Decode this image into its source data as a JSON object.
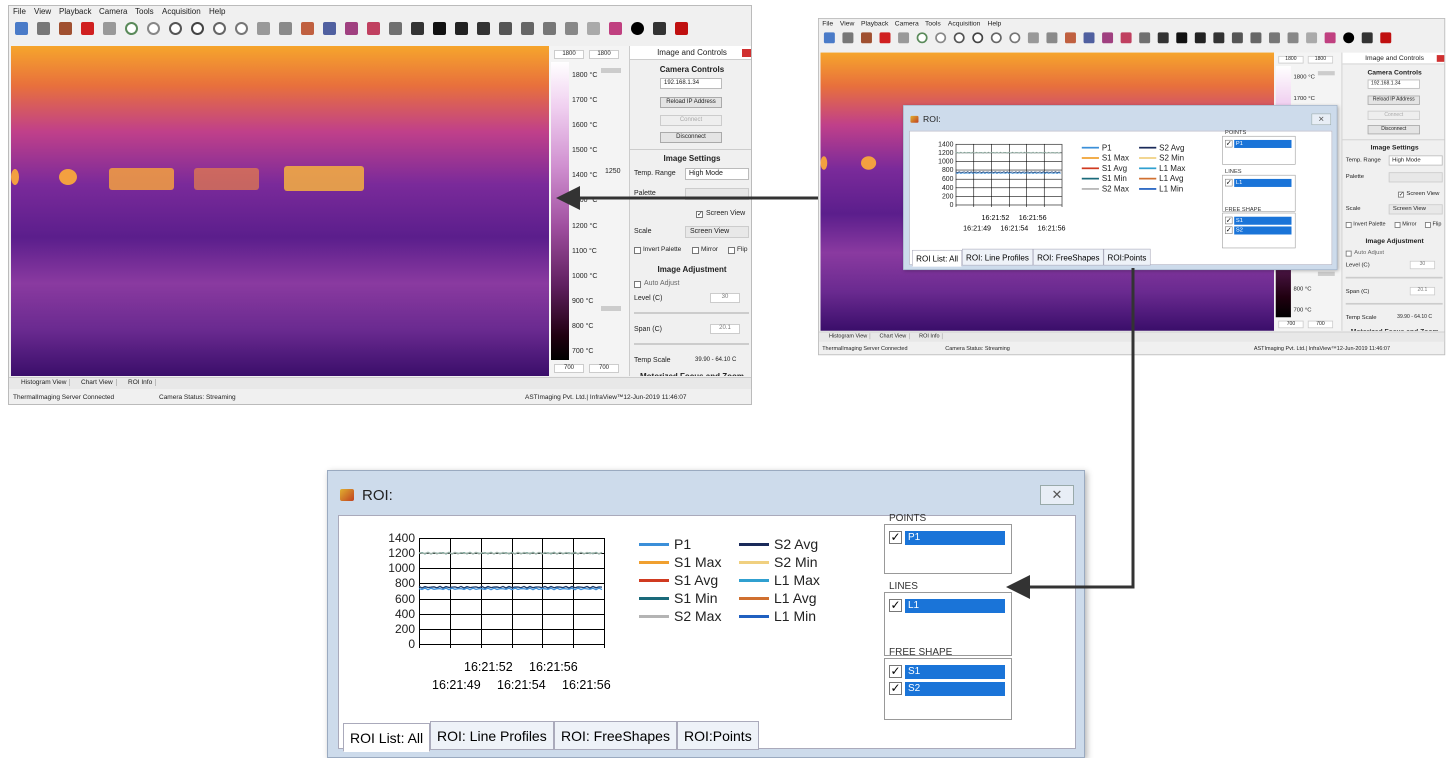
{
  "app": {
    "menu": [
      "File",
      "View",
      "Playback",
      "Camera",
      "Tools",
      "Acquisition",
      "Help"
    ],
    "scale_top": [
      "1800",
      "1800"
    ],
    "scale_labels": [
      "1800 °C",
      "1700 °C",
      "1600 °C",
      "1500 °C",
      "1400 °C",
      "1300 °C",
      "1200 °C",
      "1100 °C",
      "1000 °C",
      "900 °C",
      "800 °C",
      "700 °C"
    ],
    "scale_mid": "1250",
    "scale_bottom": [
      "700",
      "700"
    ],
    "panel": {
      "title": "Image and Controls",
      "camera_controls": "Camera Controls",
      "ip": "192.168.1.34",
      "reload": "Reload IP Address",
      "connect": "Connect",
      "disconnect": "Disconnect",
      "image_settings": "Image Settings",
      "temp_range_label": "Temp. Range",
      "temp_range": "High Mode",
      "palette_label": "Palette",
      "screen_view_check": "Screen View",
      "scale_label": "Scale",
      "scale_value": "Screen View",
      "invert": "Invert Palette",
      "mirror": "Mirror",
      "flip": "Flip",
      "image_adjustment": "Image Adjustment",
      "auto_adjust": "Auto Adjust",
      "level_label": "Level (C)",
      "level": "30",
      "span_label": "Span (C)",
      "span": "20.1",
      "temp_scale_label": "Temp Scale",
      "temp_scale": "39.90 - 64.10 C",
      "motorized": "Motorized Focus and Zoom"
    },
    "tabs": [
      "Histogram View",
      "Chart View",
      "ROI Info"
    ],
    "status": [
      "ThermalImaging Server Connected",
      "Camera Status: Streaming",
      "ASTImaging Pvt. Ltd.| InfraView™12-Jun-2019 11:46:07"
    ]
  },
  "roi": {
    "title": "ROI:",
    "yticks": [
      1400,
      1200,
      1000,
      800,
      600,
      400,
      200,
      0
    ],
    "xticks_top": [
      "16:21:52",
      "16:21:56"
    ],
    "xticks_bottom": [
      "16:21:49",
      "16:21:54",
      "16:21:56"
    ],
    "legend": [
      {
        "name": "P1",
        "color": "#3b8fd9"
      },
      {
        "name": "S1 Max",
        "color": "#f0a030"
      },
      {
        "name": "S1 Avg",
        "color": "#d03a20"
      },
      {
        "name": "S1 Min",
        "color": "#1a6a7a"
      },
      {
        "name": "S2 Max",
        "color": "#b4b4b4"
      },
      {
        "name": "S2 Avg",
        "color": "#1a2a5a"
      },
      {
        "name": "S2 Min",
        "color": "#f0d080"
      },
      {
        "name": "L1 Max",
        "color": "#30a0d0"
      },
      {
        "name": "L1 Avg",
        "color": "#d07030"
      },
      {
        "name": "L1 Min",
        "color": "#2060c0"
      }
    ],
    "groups": [
      {
        "title": "POINTS",
        "items": [
          "P1"
        ]
      },
      {
        "title": "LINES",
        "items": [
          "L1"
        ]
      },
      {
        "title": "FREE SHAPE",
        "items": [
          "S1",
          "S2"
        ]
      }
    ],
    "tabs": [
      "ROI List: All",
      "ROI: Line Profiles",
      "ROI: FreeShapes",
      "ROI:Points"
    ]
  }
}
